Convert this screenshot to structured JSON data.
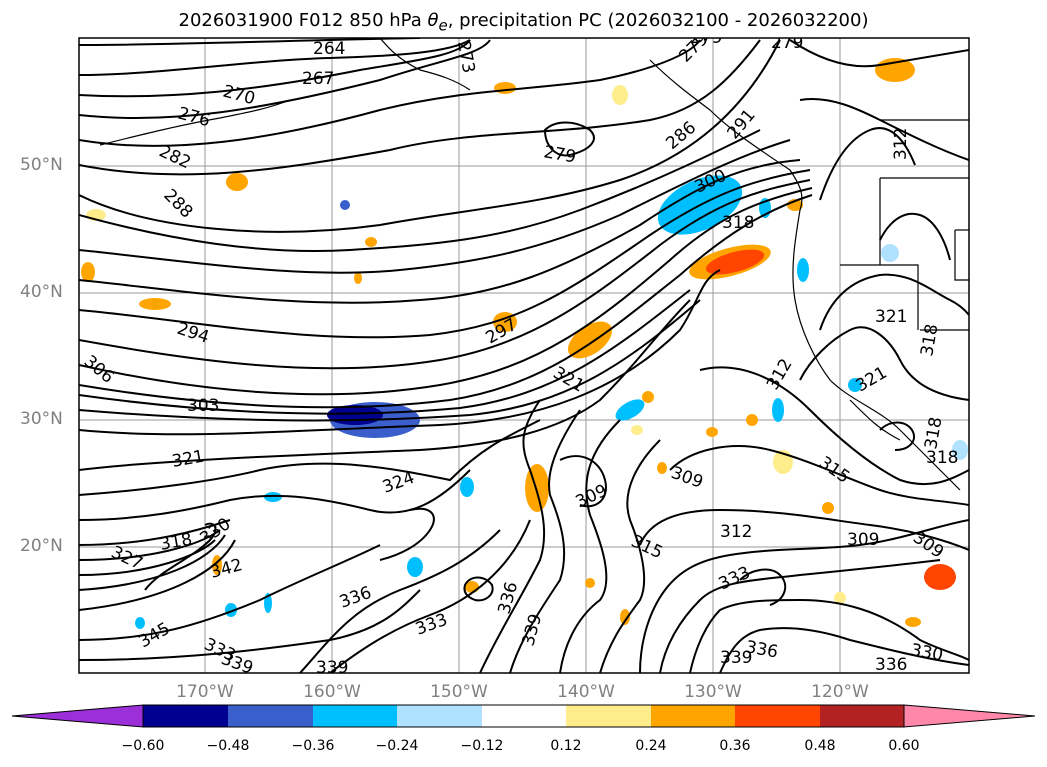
{
  "title": {
    "prefix": "2026031900 F012 850 hPa ",
    "theta": "θ",
    "theta_sub": "e",
    "suffix": ", precipitation PC (2026032100 - 2026032200)"
  },
  "map": {
    "lat_labels": [
      "50°N",
      "40°N",
      "30°N",
      "20°N"
    ],
    "lon_labels": [
      "170°W",
      "160°W",
      "150°W",
      "140°W",
      "130°W",
      "120°W"
    ],
    "contour_labels": [
      "264",
      "267",
      "270",
      "273",
      "276",
      "279",
      "279",
      "279",
      "279",
      "282",
      "286",
      "288",
      "291",
      "294",
      "297",
      "300",
      "303",
      "306",
      "309",
      "309",
      "309",
      "309",
      "312",
      "312",
      "312",
      "315",
      "315",
      "318",
      "318",
      "318",
      "318",
      "318",
      "321",
      "321",
      "321",
      "321",
      "324",
      "327",
      "330",
      "330",
      "333",
      "333",
      "333",
      "336",
      "336",
      "336",
      "336",
      "339",
      "339",
      "339",
      "339",
      "342",
      "345"
    ]
  },
  "colorbar": {
    "ticks": [
      "−0.60",
      "−0.48",
      "−0.36",
      "−0.24",
      "−0.12",
      "0.12",
      "0.24",
      "0.36",
      "0.48",
      "0.60"
    ],
    "colors": {
      "under": "#9b30d9",
      "bins": [
        "#000090",
        "#3a5fcd",
        "#00bfff",
        "#b0e2ff",
        "#ffffff",
        "#ffec8b",
        "#ffa500",
        "#ff4500",
        "#b22222"
      ],
      "over": "#ff88aa"
    }
  }
}
